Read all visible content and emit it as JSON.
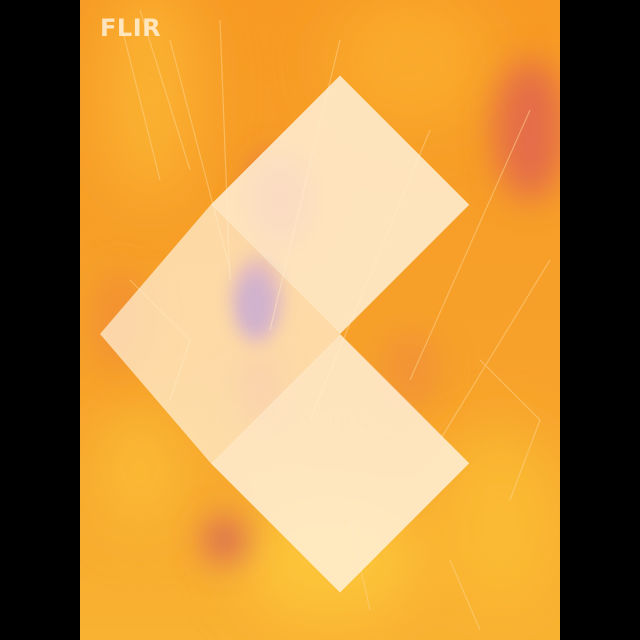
{
  "logo": {
    "brand_text": "FLIR",
    "icon": "flir-logo-icon"
  },
  "colors": {
    "palette": "iron",
    "base_orange": "#f79a24",
    "warm_yellow": "#fcc236",
    "cool_magenta": "#c8506e",
    "coldest_purple": "#5a12b4",
    "letterbox": "#000000"
  }
}
